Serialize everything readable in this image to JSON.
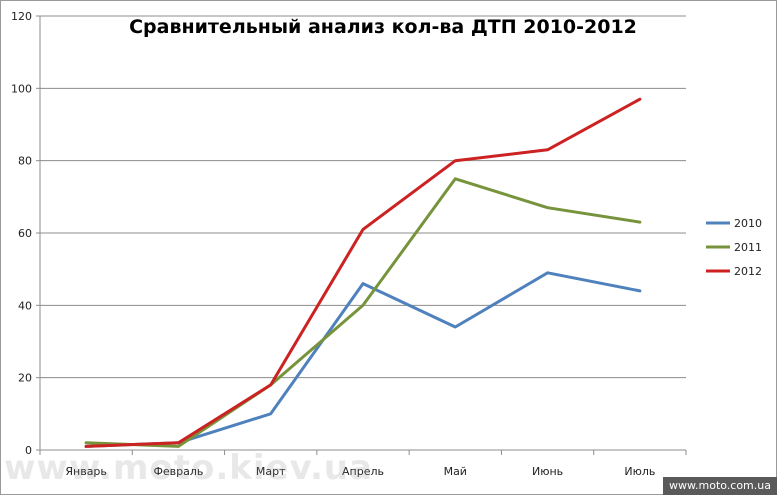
{
  "chart_data": {
    "type": "line",
    "title": "Сравнительный анализ кол-ва ДТП 2010-2012",
    "categories": [
      "Январь",
      "Февраль",
      "Март",
      "Апрель",
      "Май",
      "Июнь",
      "Июль"
    ],
    "ylim": [
      0,
      120
    ],
    "yticks": [
      "0",
      "20",
      "40",
      "60",
      "80",
      "100",
      "120"
    ],
    "grid": true,
    "legend_position": "right",
    "series": [
      {
        "name": "2010",
        "color": "#4f81bd",
        "values": [
          1,
          2,
          10,
          46,
          34,
          49,
          44
        ]
      },
      {
        "name": "2011",
        "color": "#77933c",
        "values": [
          2,
          1,
          18,
          40,
          75,
          67,
          63
        ]
      },
      {
        "name": "2012",
        "color": "#cc2222",
        "values": [
          1,
          2,
          18,
          61,
          80,
          83,
          97
        ]
      }
    ]
  },
  "watermark": "www.moto.kiev.ua",
  "badge": "www.moto.com.ua"
}
